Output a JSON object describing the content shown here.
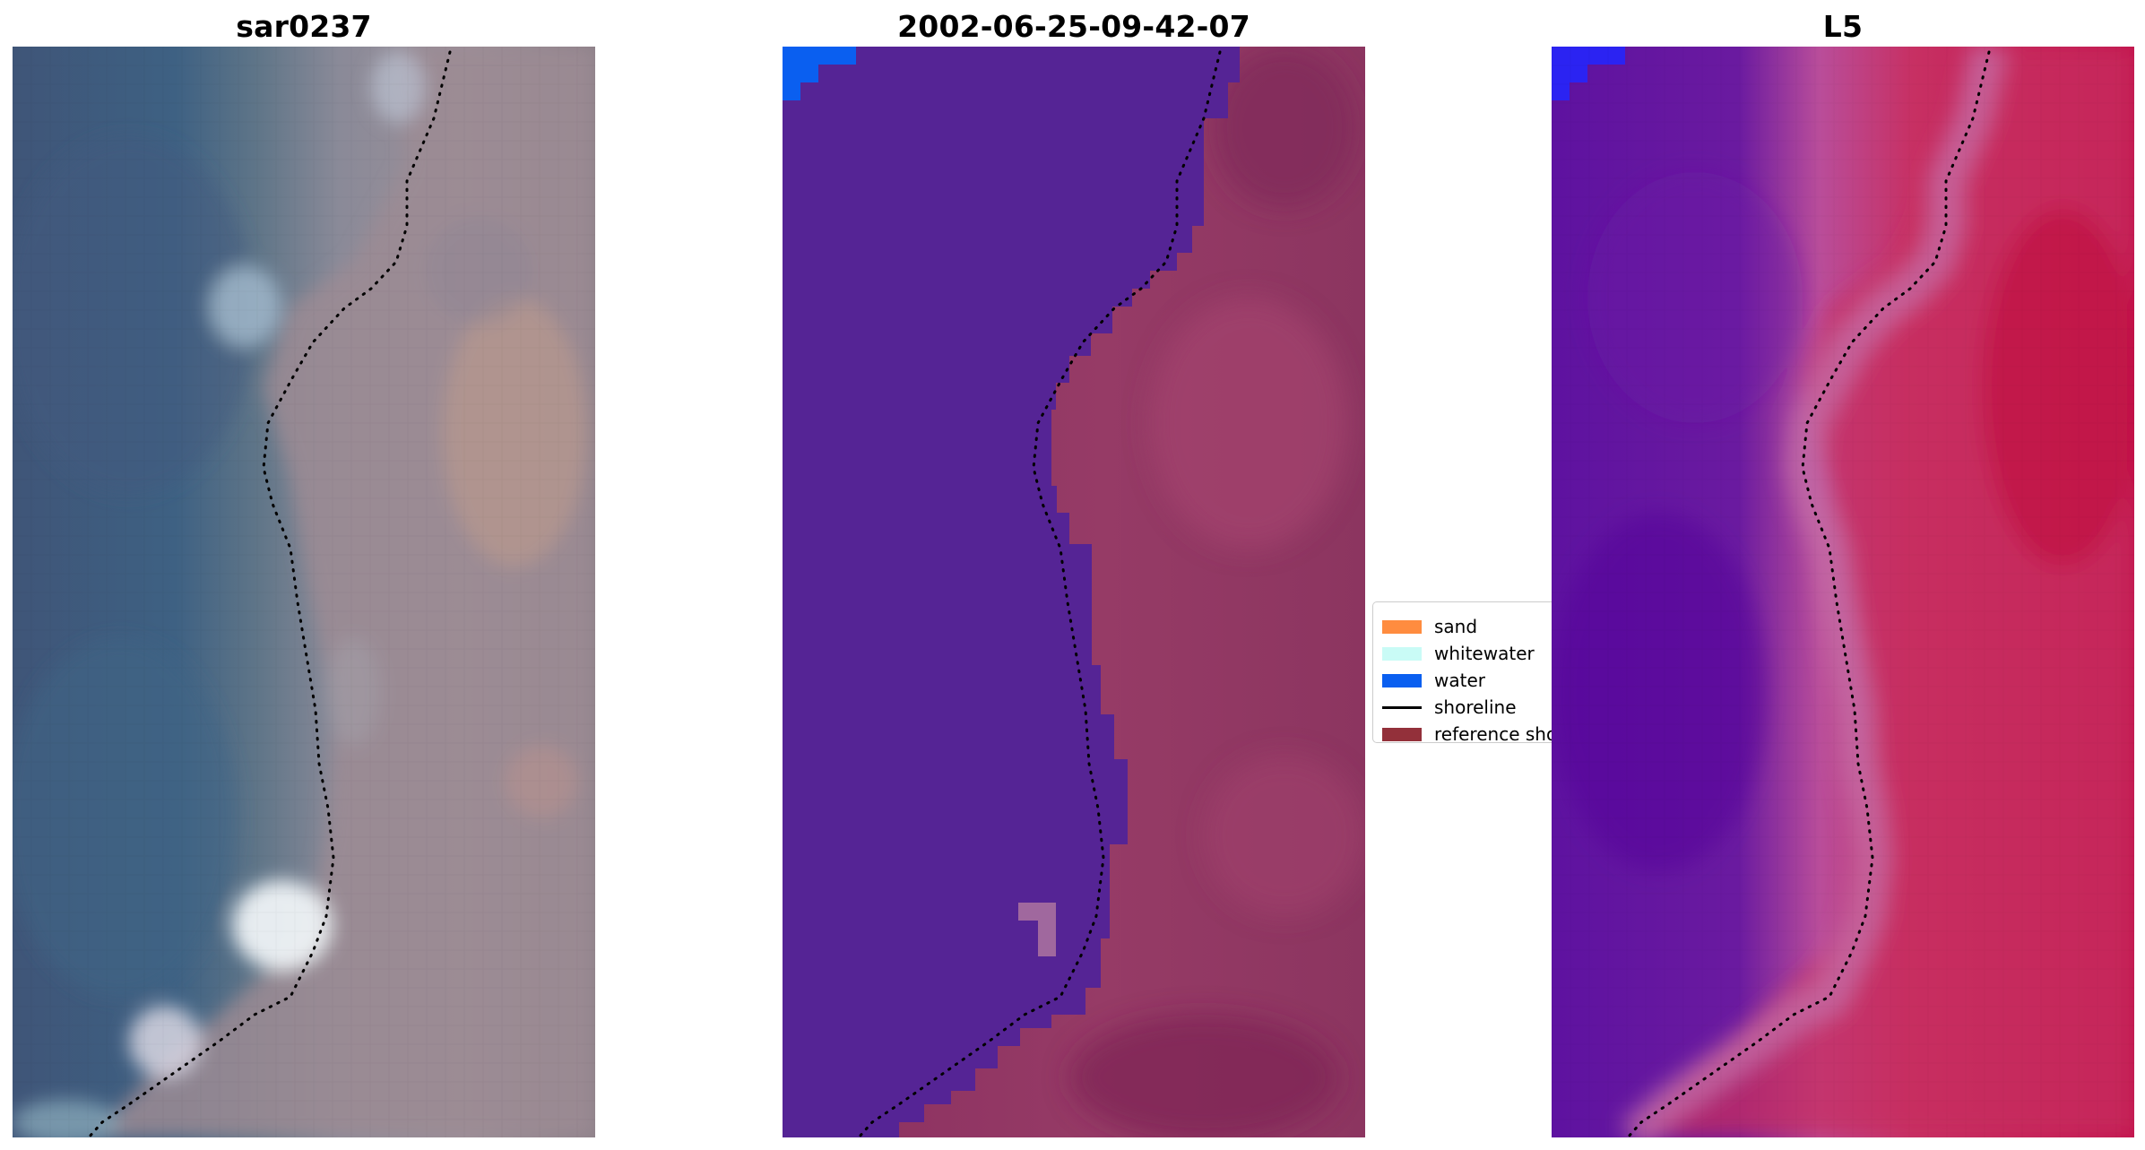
{
  "panels": [
    {
      "title": "sar0237"
    },
    {
      "title": "2002-06-25-09-42-07"
    },
    {
      "title": "L5"
    }
  ],
  "legend": {
    "items": [
      {
        "label": "sand",
        "color": "#ff8c3f",
        "kind": "patch"
      },
      {
        "label": "whitewater",
        "color": "#c9fbf6",
        "kind": "patch"
      },
      {
        "label": "water",
        "color": "#0a5ff0",
        "kind": "patch"
      },
      {
        "label": "shoreline",
        "color": "#000000",
        "kind": "line"
      },
      {
        "label": "reference shoreline",
        "color": "#93303a",
        "kind": "patch"
      }
    ]
  },
  "colors": {
    "deep_water": "#3b5a84",
    "land_rgb": "#a49598",
    "classified_water": "#552495",
    "classified_land": "#8c3560",
    "index_water": "#5b109b",
    "index_land": "#c6144c",
    "water_class_corner": "#0a5ff0",
    "index_corner": "#2b23f2"
  }
}
